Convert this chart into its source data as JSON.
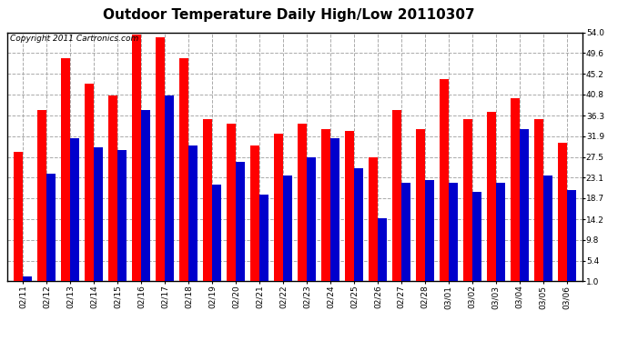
{
  "title": "Outdoor Temperature Daily High/Low 20110307",
  "copyright": "Copyright 2011 Cartronics.com",
  "dates": [
    "02/11",
    "02/12",
    "02/13",
    "02/14",
    "02/15",
    "02/16",
    "02/17",
    "02/18",
    "02/19",
    "02/20",
    "02/21",
    "02/22",
    "02/23",
    "02/24",
    "02/25",
    "02/26",
    "02/27",
    "02/28",
    "03/01",
    "03/02",
    "03/03",
    "03/04",
    "03/05",
    "03/06"
  ],
  "highs": [
    28.5,
    37.5,
    48.5,
    43.0,
    40.5,
    53.5,
    53.0,
    48.5,
    35.5,
    34.5,
    30.0,
    32.5,
    34.5,
    33.5,
    33.0,
    27.5,
    37.5,
    33.5,
    44.0,
    35.5,
    37.0,
    40.0,
    35.5,
    30.5
  ],
  "lows": [
    2.0,
    24.0,
    31.5,
    29.5,
    29.0,
    37.5,
    40.5,
    30.0,
    21.5,
    26.5,
    19.5,
    23.5,
    27.5,
    31.5,
    25.0,
    14.5,
    22.0,
    22.5,
    22.0,
    20.0,
    22.0,
    33.5,
    23.5,
    20.5
  ],
  "high_color": "#ff0000",
  "low_color": "#0000cc",
  "bg_color": "#ffffff",
  "grid_color": "#aaaaaa",
  "yticks": [
    1.0,
    5.4,
    9.8,
    14.2,
    18.7,
    23.1,
    27.5,
    31.9,
    36.3,
    40.8,
    45.2,
    49.6,
    54.0
  ],
  "ymin": 1.0,
  "ymax": 54.0,
  "bar_width": 0.38,
  "title_fontsize": 11,
  "tick_fontsize": 6.5,
  "copyright_fontsize": 6.5
}
